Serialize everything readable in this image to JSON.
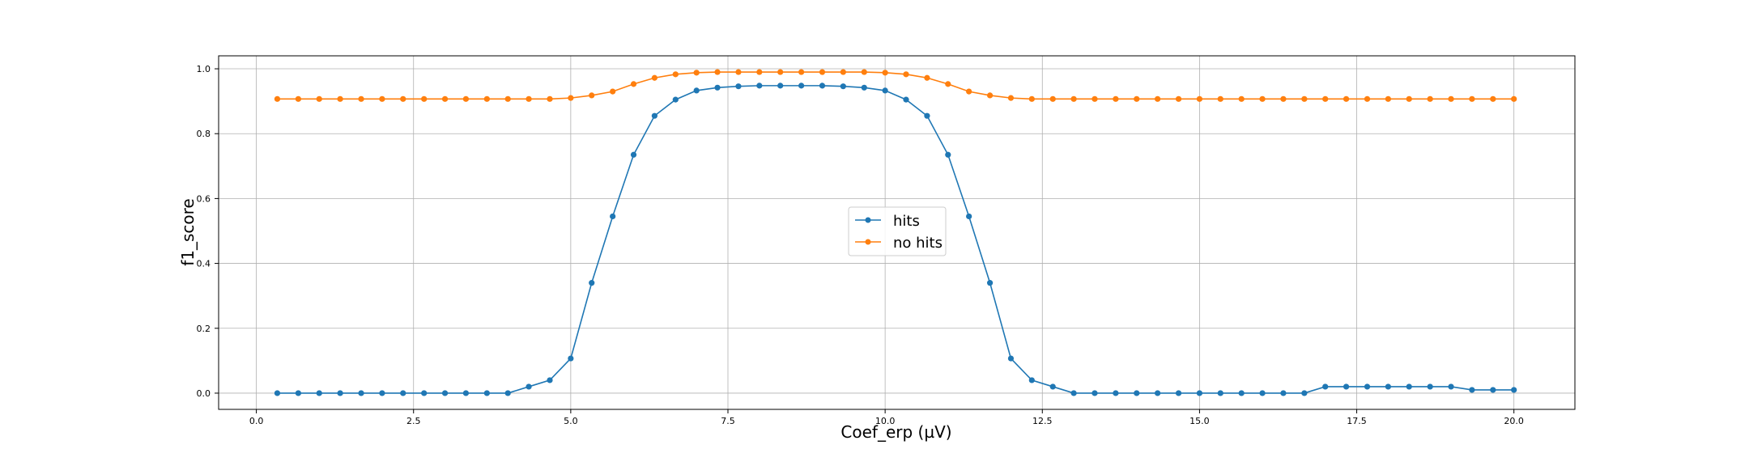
{
  "chart_data": {
    "type": "line",
    "xlabel": "Coef_erp (µV)",
    "ylabel": "f1_score",
    "xlim": [
      -0.6,
      20.97
    ],
    "ylim": [
      -0.05,
      1.04
    ],
    "xticks": [
      0.0,
      2.5,
      5.0,
      7.5,
      10.0,
      12.5,
      15.0,
      17.5,
      20.0
    ],
    "xtick_labels": [
      "0.0",
      "2.5",
      "5.0",
      "7.5",
      "10.0",
      "12.5",
      "15.0",
      "17.5",
      "20.0"
    ],
    "yticks": [
      0.0,
      0.2,
      0.4,
      0.6,
      0.8,
      1.0
    ],
    "ytick_labels": [
      "0.0",
      "0.2",
      "0.4",
      "0.6",
      "0.8",
      "1.0"
    ],
    "grid": true,
    "legend_position": "center",
    "x": [
      0.333,
      0.667,
      1.0,
      1.333,
      1.667,
      2.0,
      2.333,
      2.667,
      3.0,
      3.333,
      3.667,
      4.0,
      4.333,
      4.667,
      5.0,
      5.333,
      5.667,
      6.0,
      6.333,
      6.667,
      7.0,
      7.333,
      7.667,
      8.0,
      8.333,
      8.667,
      9.0,
      9.333,
      9.667,
      10.0,
      10.333,
      10.667,
      11.0,
      11.333,
      11.667,
      12.0,
      12.333,
      12.667,
      13.0,
      13.333,
      13.667,
      14.0,
      14.333,
      14.667,
      15.0,
      15.333,
      15.667,
      16.0,
      16.333,
      16.667,
      17.0,
      17.333,
      17.667,
      18.0,
      18.333,
      18.667,
      19.0,
      19.333,
      19.667,
      20.0
    ],
    "series": [
      {
        "name": "hits",
        "color": "#1f77b4",
        "values": [
          0.0,
          0.0,
          0.0,
          0.0,
          0.0,
          0.0,
          0.0,
          0.0,
          0.0,
          0.0,
          0.0,
          0.0,
          0.02,
          0.04,
          0.107,
          0.34,
          0.545,
          0.735,
          0.855,
          0.905,
          0.933,
          0.942,
          0.946,
          0.948,
          0.948,
          0.948,
          0.948,
          0.946,
          0.942,
          0.933,
          0.905,
          0.855,
          0.735,
          0.545,
          0.34,
          0.107,
          0.04,
          0.02,
          0.0,
          0.0,
          0.0,
          0.0,
          0.0,
          0.0,
          0.0,
          0.0,
          0.0,
          0.0,
          0.0,
          0.0,
          0.02,
          0.02,
          0.02,
          0.02,
          0.02,
          0.02,
          0.02,
          0.01,
          0.01,
          0.01
        ]
      },
      {
        "name": "no hits",
        "color": "#ff7f0e",
        "values": [
          0.907,
          0.907,
          0.907,
          0.907,
          0.907,
          0.907,
          0.907,
          0.907,
          0.907,
          0.907,
          0.907,
          0.907,
          0.907,
          0.907,
          0.91,
          0.918,
          0.93,
          0.953,
          0.972,
          0.983,
          0.988,
          0.99,
          0.99,
          0.99,
          0.99,
          0.99,
          0.99,
          0.99,
          0.99,
          0.988,
          0.983,
          0.972,
          0.953,
          0.93,
          0.918,
          0.91,
          0.907,
          0.907,
          0.907,
          0.907,
          0.907,
          0.907,
          0.907,
          0.907,
          0.907,
          0.907,
          0.907,
          0.907,
          0.907,
          0.907,
          0.907,
          0.907,
          0.907,
          0.907,
          0.907,
          0.907,
          0.907,
          0.907,
          0.907,
          0.907
        ]
      }
    ]
  }
}
